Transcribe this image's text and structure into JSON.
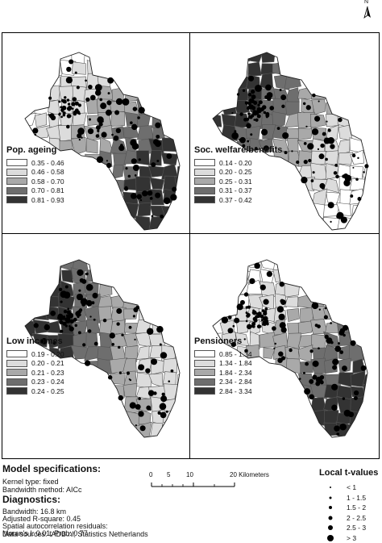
{
  "north_label": "N",
  "panels": [
    {
      "id": "pop-ageing",
      "title": "Pop. ageing",
      "classes": [
        "0.35 - 0.46",
        "0.46 - 0.58",
        "0.58 - 0.70",
        "0.70 - 0.81",
        "0.81 - 0.93"
      ],
      "colors": [
        "#ffffff",
        "#dcdcdc",
        "#a9a9a9",
        "#6e6e6e",
        "#333333"
      ],
      "pattern": "southeast-dark"
    },
    {
      "id": "soc-welfare",
      "title": "Soc. welfare/benefits",
      "classes": [
        "0.14 - 0.20",
        "0.20 - 0.25",
        "0.25 - 0.31",
        "0.31 - 0.37",
        "0.37 - 0.42"
      ],
      "colors": [
        "#ffffff",
        "#dcdcdc",
        "#a9a9a9",
        "#6e6e6e",
        "#333333"
      ],
      "pattern": "northwest-dark"
    },
    {
      "id": "low-incomes",
      "title": "Low incomes",
      "classes": [
        "0.19 - 0.20",
        "0.20 - 0.21",
        "0.21 - 0.23",
        "0.23 - 0.24",
        "0.24 - 0.25"
      ],
      "colors": [
        "#ffffff",
        "#dcdcdc",
        "#a9a9a9",
        "#6e6e6e",
        "#333333"
      ],
      "pattern": "west-dark"
    },
    {
      "id": "pensioners",
      "title": "Pensioners",
      "classes": [
        "0.85 - 1.34",
        "1.34 - 1.84",
        "1.84 - 2.34",
        "2.34 - 2.84",
        "2.84 - 3.34"
      ],
      "colors": [
        "#ffffff",
        "#dcdcdc",
        "#a9a9a9",
        "#6e6e6e",
        "#333333"
      ],
      "pattern": "southeast-mid"
    }
  ],
  "model": {
    "heading": "Model specifications:",
    "kernel": "Kernel type: fixed",
    "bandwidth_method": "Bandwidth method: AICc"
  },
  "diagnostics": {
    "heading": "Diagnostics:",
    "bandwidth": "Bandwidth: 16.8 km",
    "r_square": "Adjusted R-square: 0.45",
    "spatial": "Spatial autocorrelation residuals:",
    "morans": "Moran's I: 0.01; Prob: 0.77"
  },
  "scale": {
    "labels": [
      "0",
      "5",
      "10",
      "20 Kilometers"
    ]
  },
  "tvalues": {
    "heading": "Local t-values",
    "classes": [
      "< 1",
      "1 - 1.5",
      "1.5 - 2",
      "2 - 2.5",
      "2.5 - 3",
      "> 3"
    ]
  },
  "source": "Data sources: IADB.nl; Statistics Netherlands"
}
